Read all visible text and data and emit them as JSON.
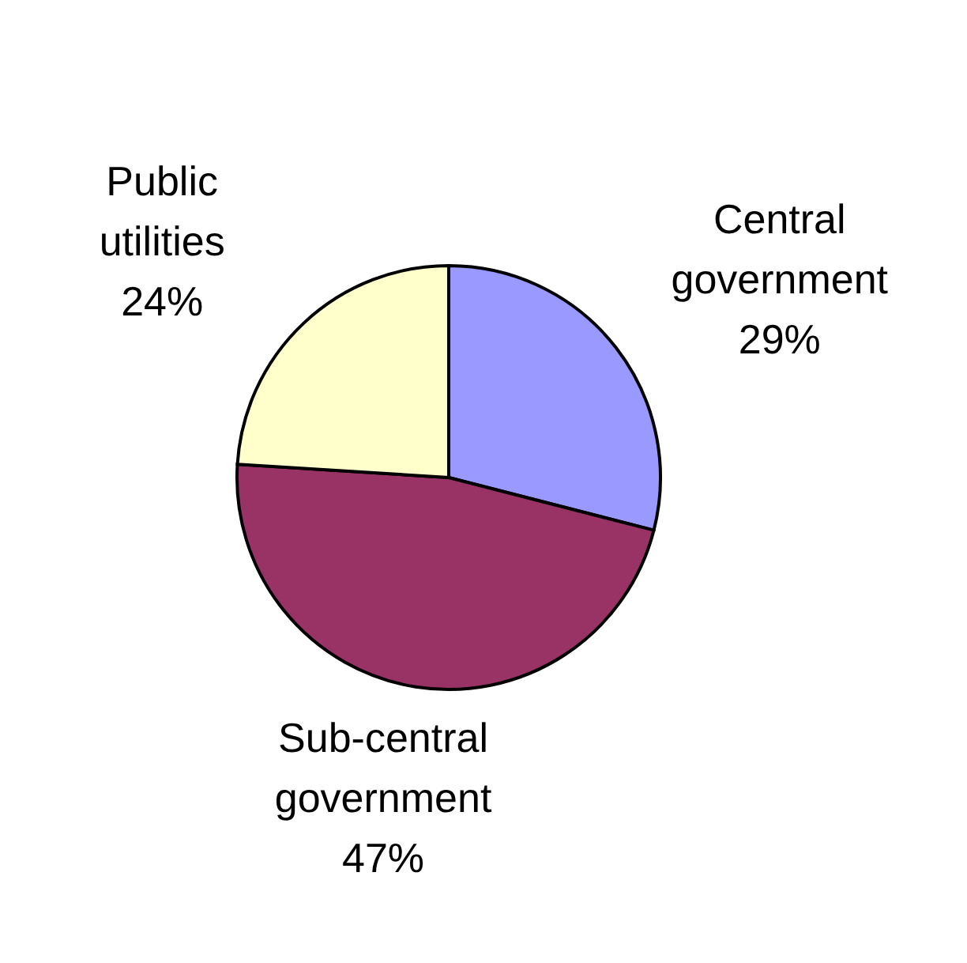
{
  "chart_data": {
    "type": "pie",
    "categories": [
      "Central government",
      "Sub-central government",
      "Public utilities"
    ],
    "values": [
      29,
      47,
      24
    ],
    "value_labels": [
      "29%",
      "47%",
      "24%"
    ],
    "colors": [
      "#9999ff",
      "#993366",
      "#ffffcc"
    ]
  }
}
